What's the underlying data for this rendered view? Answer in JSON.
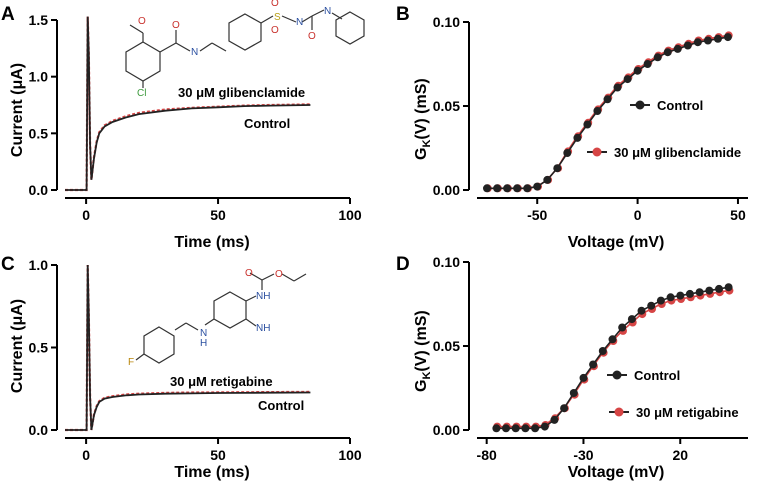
{
  "chart_data": [
    {
      "panel": "A",
      "type": "line",
      "xlabel": "Time (ms)",
      "ylabel": "Current (μA)",
      "xlim": [
        -8,
        100
      ],
      "ylim": [
        0,
        1.5
      ],
      "xticks": [
        "0",
        "50",
        "100"
      ],
      "yticks": [
        "0.0",
        "0.5",
        "1.0",
        "1.5"
      ],
      "annotations": [
        "30 μM glibenclamide",
        "Control"
      ],
      "molecule_atoms": [
        "O",
        "O",
        "N",
        "O",
        "O",
        "S",
        "N",
        "O",
        "N",
        "Cl"
      ],
      "series": [
        {
          "color": "#222222",
          "x": [
            -8,
            0.2,
            0.6,
            1,
            1.5,
            2,
            3,
            4,
            5,
            7,
            10,
            15,
            20,
            30,
            40,
            50,
            60,
            70,
            85
          ],
          "y": [
            0,
            0,
            1.55,
            1.2,
            0.4,
            0.09,
            0.28,
            0.42,
            0.5,
            0.56,
            0.6,
            0.64,
            0.67,
            0.7,
            0.72,
            0.73,
            0.74,
            0.745,
            0.75
          ]
        },
        {
          "color": "#d64545",
          "x": [
            -8,
            0.2,
            0.6,
            1,
            1.5,
            2,
            3,
            4,
            5,
            7,
            10,
            15,
            20,
            30,
            40,
            50,
            60,
            70,
            85
          ],
          "y": [
            0,
            0,
            1.55,
            1.2,
            0.4,
            0.09,
            0.29,
            0.43,
            0.51,
            0.57,
            0.61,
            0.65,
            0.68,
            0.71,
            0.725,
            0.735,
            0.745,
            0.75,
            0.755
          ]
        }
      ]
    },
    {
      "panel": "B",
      "type": "line",
      "xlabel": "Voltage (mV)",
      "ylabel": "G",
      "ylabel_sub": "K",
      "ylabel_tail": "(V) (mS)",
      "xlim": [
        -80,
        55
      ],
      "ylim": [
        0,
        0.1
      ],
      "xticks": [
        "-50",
        "0",
        "50"
      ],
      "yticks": [
        "0.00",
        "0.05",
        "0.10"
      ],
      "legend": [
        "Control",
        "30 μM glibenclamide"
      ],
      "series": [
        {
          "name": "Control",
          "color": "#222222",
          "x": [
            -75,
            -70,
            -65,
            -60,
            -55,
            -50,
            -45,
            -40,
            -35,
            -30,
            -25,
            -20,
            -15,
            -10,
            -5,
            0,
            5,
            10,
            15,
            20,
            25,
            30,
            35,
            40,
            45
          ],
          "y": [
            0.001,
            0.001,
            0.001,
            0.001,
            0.001,
            0.002,
            0.006,
            0.013,
            0.022,
            0.031,
            0.039,
            0.047,
            0.054,
            0.061,
            0.066,
            0.071,
            0.075,
            0.079,
            0.082,
            0.084,
            0.086,
            0.088,
            0.089,
            0.09,
            0.091
          ]
        },
        {
          "name": "30 μM glibenclamide",
          "color": "#d64545",
          "x": [
            -75,
            -70,
            -65,
            -60,
            -55,
            -50,
            -45,
            -40,
            -35,
            -30,
            -25,
            -20,
            -15,
            -10,
            -5,
            0,
            5,
            10,
            15,
            20,
            25,
            30,
            35,
            40,
            45
          ],
          "y": [
            0.001,
            0.001,
            0.001,
            0.001,
            0.001,
            0.002,
            0.006,
            0.013,
            0.023,
            0.032,
            0.04,
            0.048,
            0.055,
            0.062,
            0.067,
            0.072,
            0.076,
            0.08,
            0.083,
            0.085,
            0.087,
            0.089,
            0.09,
            0.091,
            0.092
          ]
        }
      ]
    },
    {
      "panel": "C",
      "type": "line",
      "xlabel": "Time (ms)",
      "ylabel": "Current (μA)",
      "xlim": [
        -8,
        100
      ],
      "ylim": [
        0,
        1.0
      ],
      "xticks": [
        "0",
        "50",
        "100"
      ],
      "yticks": [
        "0.0",
        "0.5",
        "1.0"
      ],
      "annotations": [
        "30 μM retigabine",
        "Control"
      ],
      "molecule_atoms": [
        "O",
        "O",
        "NH",
        "F",
        "N",
        "H",
        "NH"
      ],
      "series": [
        {
          "color": "#222222",
          "x": [
            -8,
            0.2,
            0.6,
            1,
            1.5,
            2,
            3,
            4,
            5,
            7,
            10,
            15,
            20,
            30,
            40,
            50,
            60,
            70,
            85
          ],
          "y": [
            0,
            0,
            1.0,
            0.7,
            0.2,
            0.0,
            0.09,
            0.14,
            0.17,
            0.19,
            0.2,
            0.21,
            0.215,
            0.22,
            0.222,
            0.224,
            0.225,
            0.226,
            0.227
          ]
        },
        {
          "color": "#d64545",
          "x": [
            -8,
            0.2,
            0.6,
            1,
            1.5,
            2,
            3,
            4,
            5,
            7,
            10,
            15,
            20,
            30,
            40,
            50,
            60,
            70,
            85
          ],
          "y": [
            0,
            0,
            1.0,
            0.7,
            0.2,
            0.0,
            0.095,
            0.145,
            0.175,
            0.195,
            0.205,
            0.215,
            0.22,
            0.225,
            0.227,
            0.228,
            0.229,
            0.23,
            0.231
          ]
        }
      ]
    },
    {
      "panel": "D",
      "type": "line",
      "xlabel": "Voltage (mV)",
      "ylabel": "G",
      "ylabel_sub": "K",
      "ylabel_tail": "(V) (mS)",
      "xlim": [
        -85,
        55
      ],
      "ylim": [
        0,
        0.1
      ],
      "xticks": [
        "-80",
        "-30",
        "20"
      ],
      "yticks": [
        "0.00",
        "0.05",
        "0.10"
      ],
      "legend": [
        "Control",
        "30 μM retigabine"
      ],
      "series": [
        {
          "name": "Control",
          "color": "#222222",
          "x": [
            -75,
            -70,
            -65,
            -60,
            -55,
            -50,
            -45,
            -40,
            -35,
            -30,
            -25,
            -20,
            -15,
            -10,
            -5,
            0,
            5,
            10,
            15,
            20,
            25,
            30,
            35,
            40,
            45
          ],
          "y": [
            0.001,
            0.001,
            0.001,
            0.001,
            0.001,
            0.002,
            0.006,
            0.013,
            0.022,
            0.031,
            0.039,
            0.047,
            0.054,
            0.061,
            0.066,
            0.071,
            0.074,
            0.077,
            0.079,
            0.08,
            0.081,
            0.082,
            0.083,
            0.084,
            0.085
          ]
        },
        {
          "name": "30 μM retigabine",
          "color": "#d64545",
          "x": [
            -75,
            -70,
            -65,
            -60,
            -55,
            -50,
            -45,
            -40,
            -35,
            -30,
            -25,
            -20,
            -15,
            -10,
            -5,
            0,
            5,
            10,
            15,
            20,
            25,
            30,
            35,
            40,
            45
          ],
          "y": [
            0.002,
            0.002,
            0.002,
            0.002,
            0.002,
            0.003,
            0.007,
            0.013,
            0.021,
            0.03,
            0.038,
            0.046,
            0.053,
            0.059,
            0.064,
            0.069,
            0.072,
            0.075,
            0.077,
            0.078,
            0.079,
            0.08,
            0.081,
            0.082,
            0.083
          ]
        }
      ]
    }
  ]
}
